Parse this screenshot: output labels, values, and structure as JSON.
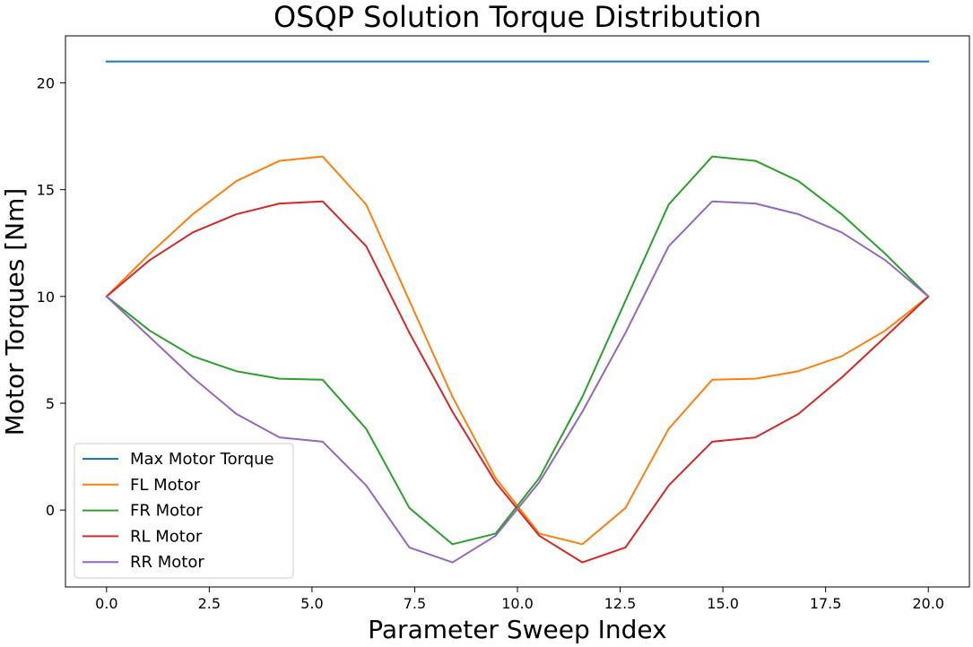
{
  "chart_data": {
    "type": "line",
    "title": "OSQP Solution Torque Distribution",
    "xlabel": "Parameter Sweep Index",
    "ylabel": "Motor Torques [Nm]",
    "xlim": [
      -1.0,
      21.0
    ],
    "ylim": [
      -3.6,
      22.2
    ],
    "xticks": [
      0.0,
      2.5,
      5.0,
      7.5,
      10.0,
      12.5,
      15.0,
      17.5,
      20.0
    ],
    "xtick_labels": [
      "0.0",
      "2.5",
      "5.0",
      "7.5",
      "10.0",
      "12.5",
      "15.0",
      "17.5",
      "20.0"
    ],
    "yticks": [
      0,
      5,
      10,
      15,
      20
    ],
    "ytick_labels": [
      "0",
      "5",
      "10",
      "15",
      "20"
    ],
    "grid": false,
    "legend_position": "lower-left",
    "x": [
      0.0,
      1.05,
      2.1,
      3.16,
      4.21,
      5.26,
      6.32,
      7.37,
      8.42,
      9.47,
      10.53,
      11.58,
      12.63,
      13.68,
      14.74,
      15.79,
      16.84,
      17.89,
      18.95,
      20.0
    ],
    "series": [
      {
        "name": "Max Motor Torque",
        "color": "#1f77b4",
        "x": [
          0.0,
          20.0
        ],
        "values": [
          21.0,
          21.0
        ]
      },
      {
        "name": "FL Motor",
        "color": "#ff7f0e",
        "values": [
          10.0,
          12.0,
          13.85,
          15.4,
          16.35,
          16.55,
          14.3,
          9.8,
          5.3,
          1.5,
          -1.1,
          -1.6,
          0.1,
          3.8,
          6.1,
          6.15,
          6.5,
          7.2,
          8.4,
          10.0
        ]
      },
      {
        "name": "FR Motor",
        "color": "#2ca02c",
        "values": [
          10.0,
          8.4,
          7.2,
          6.5,
          6.15,
          6.1,
          3.8,
          0.1,
          -1.6,
          -1.1,
          1.5,
          5.3,
          9.8,
          14.3,
          16.55,
          16.35,
          15.4,
          13.85,
          12.0,
          10.0
        ]
      },
      {
        "name": "RL Motor",
        "color": "#d62728",
        "values": [
          10.0,
          11.7,
          13.0,
          13.85,
          14.35,
          14.45,
          12.35,
          8.3,
          4.6,
          1.3,
          -1.2,
          -2.45,
          -1.75,
          1.15,
          3.2,
          3.4,
          4.5,
          6.2,
          8.1,
          10.0
        ]
      },
      {
        "name": "RR Motor",
        "color": "#9467bd",
        "values": [
          10.0,
          8.1,
          6.2,
          4.5,
          3.4,
          3.2,
          1.15,
          -1.75,
          -2.45,
          -1.2,
          1.3,
          4.6,
          8.3,
          12.35,
          14.45,
          14.35,
          13.85,
          13.0,
          11.7,
          10.0
        ]
      }
    ]
  }
}
